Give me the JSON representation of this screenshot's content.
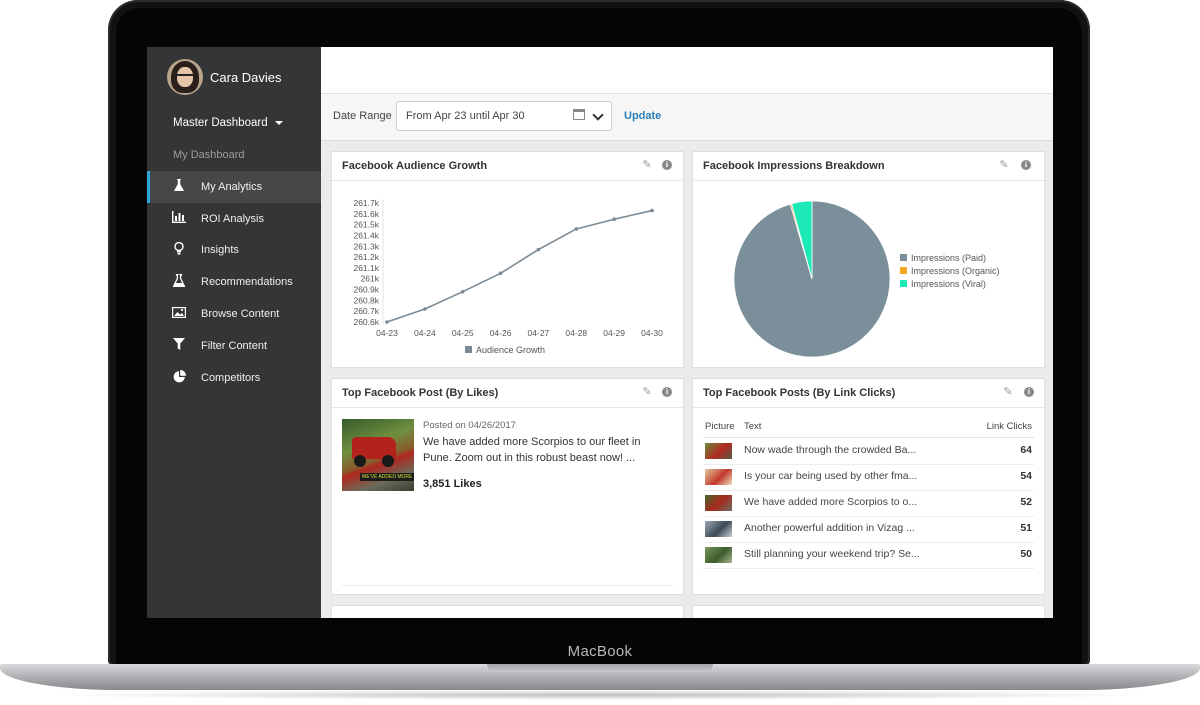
{
  "device": {
    "brand": "MacBook"
  },
  "user": {
    "name": "Cara Davies"
  },
  "sidebar": {
    "dashboard_select": "Master Dashboard",
    "section_label": "My Dashboard",
    "items": [
      {
        "label": "My Analytics",
        "icon": "flask-icon",
        "active": true
      },
      {
        "label": "ROI Analysis",
        "icon": "bar-chart-icon"
      },
      {
        "label": "Insights",
        "icon": "lightbulb-icon"
      },
      {
        "label": "Recommendations",
        "icon": "beaker-icon"
      },
      {
        "label": "Browse Content",
        "icon": "image-icon"
      },
      {
        "label": "Filter Content",
        "icon": "filter-icon"
      },
      {
        "label": "Competitors",
        "icon": "pie-chart-icon"
      }
    ]
  },
  "date_range": {
    "label": "Date Range",
    "value": "From Apr 23 until Apr 30",
    "update_label": "Update"
  },
  "panels": {
    "audience_growth": {
      "title": "Facebook Audience Growth"
    },
    "impressions": {
      "title": "Facebook Impressions Breakdown"
    },
    "top_post": {
      "title": "Top Facebook Post (By Likes)",
      "posted": "Posted on 04/26/2017",
      "text_line1": "We have added more Scorpios to our fleet in",
      "text_line2": "Pune. Zoom out in this robust beast now! ...",
      "likes": "3,851 Likes"
    },
    "top_posts_clicks": {
      "title": "Top Facebook Posts (By Link Clicks)",
      "headers": [
        "Picture",
        "Text",
        "Link Clicks"
      ],
      "rows": [
        {
          "text": "Now wade through the crowded Ba...",
          "clicks": "64"
        },
        {
          "text": "Is your car being used by other fma...",
          "clicks": "54"
        },
        {
          "text": "We have added more Scorpios to o...",
          "clicks": "52"
        },
        {
          "text": "Another powerful addition in Vizag ...",
          "clicks": "51"
        },
        {
          "text": "Still planning your weekend trip? Se...",
          "clicks": "50"
        }
      ]
    }
  },
  "chart_data": [
    {
      "type": "line",
      "x": [
        "04-23",
        "04-24",
        "04-25",
        "04-26",
        "04-27",
        "04-28",
        "04-29",
        "04-30"
      ],
      "series": [
        {
          "name": "Audience Growth",
          "values": [
            260.6,
            260.72,
            260.88,
            261.05,
            261.27,
            261.46,
            261.55,
            261.63
          ],
          "color": "#7a8b97"
        }
      ],
      "ylim": [
        260.6,
        261.7
      ],
      "yticks": [
        "261.7k",
        "261.6k",
        "261.5k",
        "261.4k",
        "261.3k",
        "261.2k",
        "261.1k",
        "261k",
        "260.9k",
        "260.8k",
        "260.7k",
        "260.6k"
      ],
      "legend": "bottom"
    },
    {
      "type": "pie",
      "slices": [
        {
          "label": "Impressions (Paid)",
          "value": 95.5,
          "color": "#7a8f99"
        },
        {
          "label": "Impressions (Organic)",
          "value": 0.3,
          "color": "#f5a623"
        },
        {
          "label": "Impressions (Viral)",
          "value": 4.2,
          "color": "#1de9b6"
        }
      ],
      "legend": "right"
    }
  ]
}
